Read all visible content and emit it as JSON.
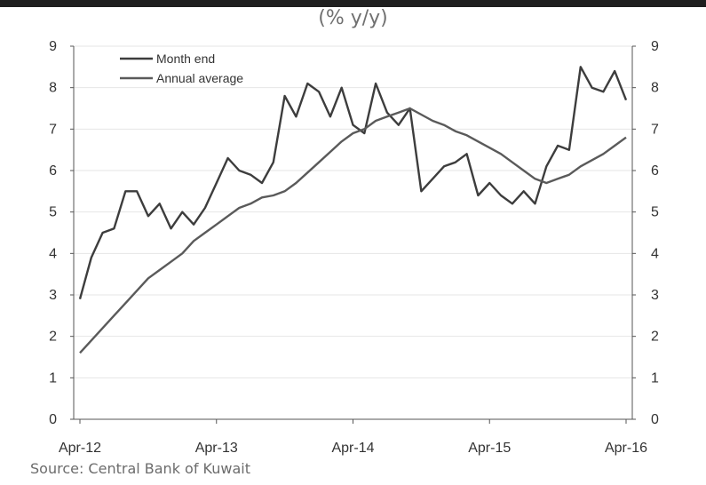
{
  "chart_data": {
    "type": "line",
    "subtitle": "(% y/y)",
    "source": "Source: Central Bank of Kuwait",
    "x_ticks": [
      "Apr-12",
      "Apr-13",
      "Apr-14",
      "Apr-15",
      "Apr-16"
    ],
    "y_ticks": [
      "0",
      "1",
      "2",
      "3",
      "4",
      "5",
      "6",
      "7",
      "8",
      "9"
    ],
    "ylim": [
      0,
      9
    ],
    "x_start": "Apr-12",
    "x_end": "Apr-16",
    "grid": true,
    "legend_position": "top-left",
    "series": [
      {
        "name": "Month end",
        "color": "#3d3d3d",
        "values": [
          2.9,
          3.9,
          4.5,
          4.6,
          5.5,
          5.5,
          4.9,
          5.2,
          4.6,
          5.0,
          4.7,
          5.1,
          5.7,
          6.3,
          6.0,
          5.9,
          5.7,
          6.2,
          7.8,
          7.3,
          8.1,
          7.9,
          7.3,
          8.0,
          7.1,
          6.9,
          8.1,
          7.4,
          7.1,
          7.5,
          5.5,
          5.8,
          6.1,
          6.2,
          6.4,
          5.4,
          5.7,
          5.4,
          5.2,
          5.5,
          5.2,
          6.1,
          6.6,
          6.5,
          8.5,
          8.0,
          7.9,
          8.4,
          7.7
        ]
      },
      {
        "name": "Annual average",
        "color": "#5a5a5a",
        "values": [
          1.6,
          1.9,
          2.2,
          2.5,
          2.8,
          3.1,
          3.4,
          3.6,
          3.8,
          4.0,
          4.3,
          4.5,
          4.7,
          4.9,
          5.1,
          5.2,
          5.35,
          5.4,
          5.5,
          5.7,
          5.95,
          6.2,
          6.45,
          6.7,
          6.9,
          7.0,
          7.2,
          7.3,
          7.4,
          7.5,
          7.35,
          7.2,
          7.1,
          6.95,
          6.85,
          6.7,
          6.55,
          6.4,
          6.2,
          6.0,
          5.8,
          5.7,
          5.8,
          5.9,
          6.1,
          6.25,
          6.4,
          6.6,
          6.8
        ]
      }
    ]
  }
}
